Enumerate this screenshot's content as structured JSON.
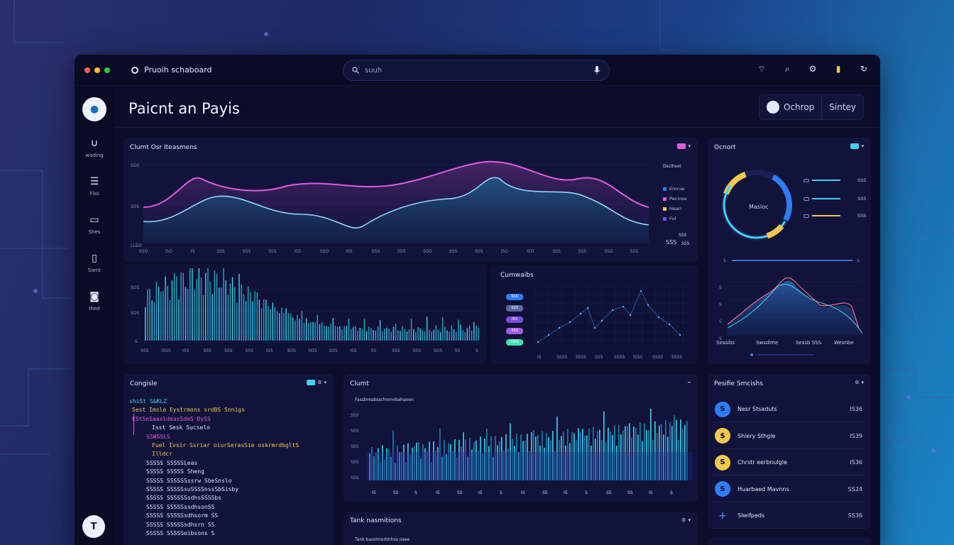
{
  "app": {
    "title": "Pruoih schaboard"
  },
  "search": {
    "placeholder": "suuh"
  },
  "page": {
    "title": "Paicnt an Payis",
    "buttons": [
      {
        "label": "Ochrop"
      },
      {
        "label": "Sintey"
      }
    ]
  },
  "sidebar": {
    "items": [
      {
        "label": "wading"
      },
      {
        "label": "Flss"
      },
      {
        "label": "Shes"
      },
      {
        "label": "Sient"
      },
      {
        "label": "Ihed"
      }
    ]
  },
  "icons": {
    "top_right": [
      "signal-icon",
      "search-icon",
      "settings-icon",
      "notification-icon",
      "refresh-icon"
    ]
  },
  "colors": {
    "cyan": "#3fd2f2",
    "magenta": "#e05be0",
    "yellow": "#f2c94c",
    "blue": "#2f7df6",
    "purple": "#7a4de0"
  },
  "panels": {
    "top_chart": {
      "title": "Clumt Osr Iteasmens",
      "y_ticks": [
        "SSO",
        "SOS",
        "LLSO"
      ],
      "x_ticks": [
        "SSO",
        "ISO",
        "IS",
        "SSS",
        "SSS",
        "SSS",
        "ISS",
        "SSO",
        "ISS",
        "SSS",
        "SSS",
        "SSO",
        "SSS",
        "SSS",
        "ISO",
        "ISO",
        "SSS",
        "SSS",
        "SSO",
        "SSS"
      ],
      "legend_title": "Dsclhsot",
      "legend": [
        {
          "label": "Emrue"
        },
        {
          "label": "Pecinse"
        },
        {
          "label": "Hean"
        },
        {
          "label": "Ful"
        }
      ],
      "side_values": [
        "SSS",
        "SSS",
        "SSS"
      ]
    },
    "bar_chart": {
      "y_ticks": [
        "SOS",
        "SOS",
        "S"
      ],
      "x_ticks": [
        "SSS",
        "ISSS",
        "ISS",
        "SSS",
        "SSS",
        "SSS",
        "ISS",
        "SOS",
        "SOS",
        "SOS",
        "ISS",
        "SS",
        "SSS",
        "SSS",
        "SOS",
        "SS",
        "S"
      ]
    },
    "scatter_chart": {
      "title": "Cumwaibs",
      "tags": [
        "SSS",
        "SSS",
        "ISS",
        "SSS",
        "SSSS"
      ],
      "x_ticks": [
        "IS",
        "SSSS",
        "SSSS",
        "SSS",
        "SSSS",
        "ISSS",
        "SSSS",
        "SSSS"
      ]
    },
    "donut": {
      "title": "Ocnort",
      "center_label": "Masloc",
      "legend": [
        {
          "value": "SSS"
        },
        {
          "value": "SSS"
        },
        {
          "value": "SSS"
        }
      ],
      "line_left": "S",
      "line_right": "S",
      "mini_x": [
        "Sessibs",
        "Swsdlme",
        "Sessb SSS",
        "Wesnbe"
      ],
      "mini_y": [
        "S",
        "S",
        "S",
        "S"
      ]
    },
    "console": {
      "title": "Congisle",
      "lines": [
        {
          "text": "shiSt S&KLZ",
          "color": "#3fd2f2"
        },
        {
          "text": "Sest Imsle   Eystrmons  srdBS  Snnigs",
          "color": "#f2c94c"
        },
        {
          "text": "EStSnSaasldeasSdmS DySS",
          "color": "#e05be0"
        },
        {
          "text": "Isst  Sesk  Sucselo",
          "color": "#dfe3ff"
        },
        {
          "text": "SSWSSLS",
          "color": "#e05be0"
        },
        {
          "text": "Fuel   Ivsir  Ssriar  oiurSerasSie  oskrmrdbgltS",
          "color": "#f2c94c"
        },
        {
          "text": "Illdcr",
          "color": "#f2c94c"
        },
        {
          "text": "SSSSS  SSSSSLeas",
          "color": "#dfe3ff"
        },
        {
          "text": "SSSSS  SSSSS Sheng",
          "color": "#dfe3ff"
        },
        {
          "text": "SSSSS  SSSSSSssrw SbeSnslo",
          "color": "#dfe3ff"
        },
        {
          "text": "SSSSS  SSSSSsuSSSSnssSbSisby",
          "color": "#dfe3ff"
        },
        {
          "text": "SSSSS  SSSSSSsdhsSSSSbs",
          "color": "#dfe3ff"
        },
        {
          "text": "SSSSS  SSSSSssdhsonSS",
          "color": "#dfe3ff"
        },
        {
          "text": "SSSSS  SSSSSsdhsorm SS",
          "color": "#dfe3ff"
        },
        {
          "text": "SSSSS  SSSSSsdhsrn SS",
          "color": "#dfe3ff"
        },
        {
          "text": "SSSSS  SSSSSeibsons S",
          "color": "#dfe3ff"
        }
      ]
    },
    "chunt": {
      "title": "Clumt",
      "subtitle": "Fassbreabsschnmvbahaoen",
      "y_ticks": [
        "SSS",
        "SSS",
        "SSS",
        "SSS",
        "SSS"
      ],
      "x_ticks": [
        "IS",
        "SS",
        "S",
        "IS",
        "SS",
        "IS",
        "S",
        "IS",
        "SS",
        "IS",
        "S",
        "SS",
        "SS",
        "IS",
        "S"
      ]
    },
    "tasks": {
      "title": "Tank nasmitions",
      "subtitle": "Tank basslmorbhhss oaee"
    },
    "status": {
      "title": "Pesifie Smcishs",
      "rows": [
        {
          "name": "Nesr Stsaduts",
          "value": "IS36",
          "color": "#2f7df6",
          "glyph": "S"
        },
        {
          "name": "Shiery Sthgle",
          "value": "IS39",
          "color": "#f2c94c",
          "glyph": "$"
        },
        {
          "name": "Chrstr eerbnulgle",
          "value": "IS36",
          "color": "#f2c94c",
          "glyph": "S"
        },
        {
          "name": "Huarbaed Mavnns",
          "value": "SS24",
          "color": "#2f7df6",
          "glyph": "S"
        },
        {
          "name": "Slwifpeds",
          "value": "SS36",
          "color": "#2f7df6",
          "glyph": "+"
        }
      ]
    }
  }
}
